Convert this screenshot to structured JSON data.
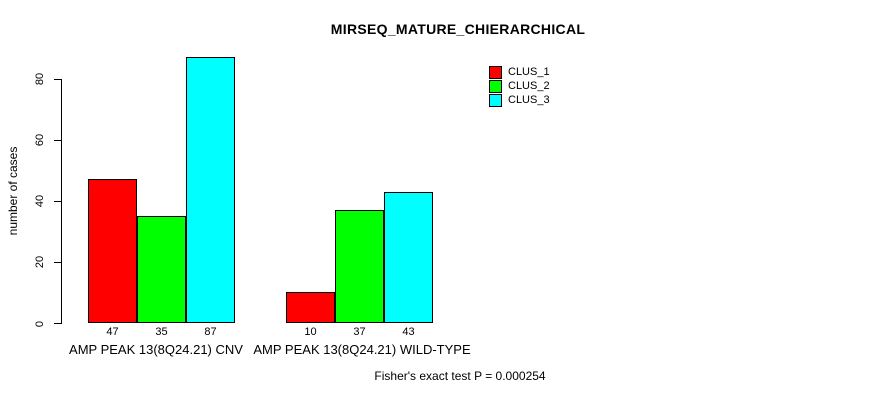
{
  "chart_data": {
    "type": "bar",
    "title": "MIRSEQ_MATURE_CHIERARCHICAL",
    "ylabel": "number of cases",
    "xlabel": "",
    "ylim": [
      0,
      87
    ],
    "yticks": [
      0,
      20,
      40,
      60,
      80
    ],
    "grid": false,
    "legend_position": "top-right",
    "categories": [
      "AMP PEAK 13(8Q24.21) CNV",
      "AMP PEAK 13(8Q24.21) WILD-TYPE"
    ],
    "series": [
      {
        "name": "CLUS_1",
        "color": "#ff0000",
        "values": [
          47,
          10
        ]
      },
      {
        "name": "CLUS_2",
        "color": "#00ff00",
        "values": [
          35,
          37
        ]
      },
      {
        "name": "CLUS_3",
        "color": "#00ffff",
        "values": [
          87,
          43
        ]
      }
    ],
    "bar_value_labels": [
      [
        47,
        35,
        87
      ],
      [
        10,
        37,
        43
      ]
    ],
    "annotation": "Fisher's exact test P = 0.000254",
    "axis_color": "#000000",
    "background_color": "#ffffff"
  }
}
